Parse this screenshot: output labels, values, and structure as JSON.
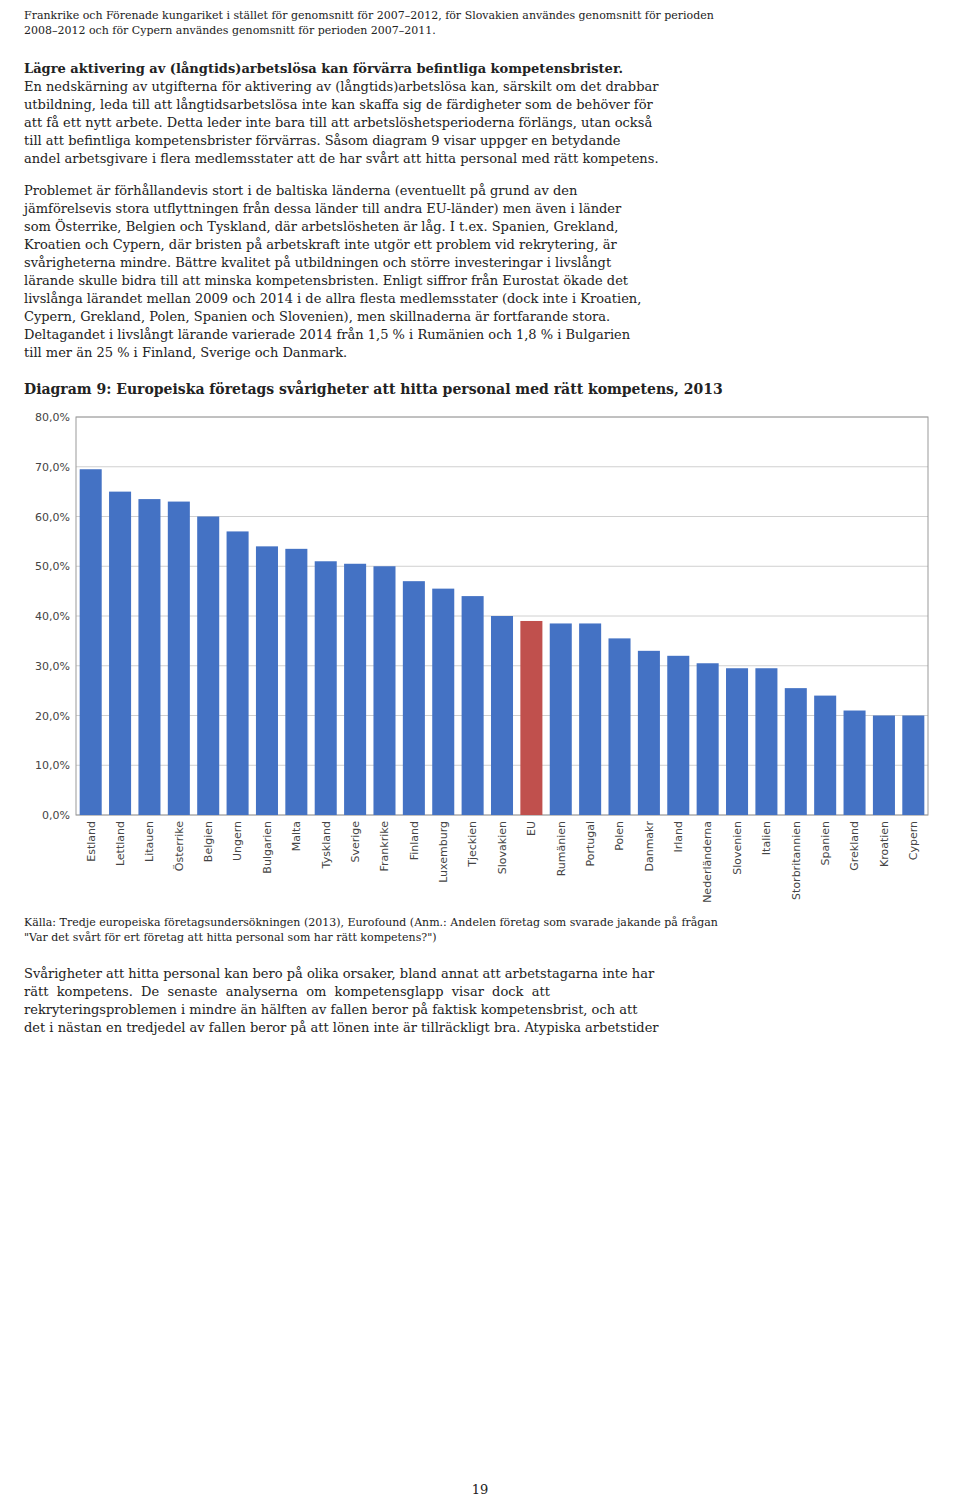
{
  "page": {
    "intro": "Frankrike och Förenade kungariket i stället för genomsnitt för 2007–2012, för Slovakien användes genomsnitt för perioden\n2008–2012 och för Cypern användes genomsnitt för perioden 2007–2011.",
    "heading": "Lägre aktivering av (långtids)arbetslösa kan förvärra befintliga kompetensbrister.",
    "body": "En nedskärning av utgifterna för aktivering av (långtids)arbetslösa kan, särskilt om det drabbar\nutbildning, leda till att långtidsarbetslösa inte kan skaffa sig de färdigheter som de behöver för\natt få ett nytt arbete. Detta leder inte bara till att arbetslöshetsperioderna förlängs, utan också\ntill att befintliga kompetensbrister förvärras. Såsom diagram 9 visar uppger en betydande\nandel arbetsgivare i flera medlemsstater att de har svårt att hitta personal med rätt kompetens.",
    "paragraph": "Problemet är förhållandevis stort i de baltiska länderna (eventuellt på grund av den\njämförelsevis stora utflyttningen från dessa länder till andra EU-länder) men även i länder\nsom Österrike, Belgien och Tyskland, där arbetslösheten är låg. I t.ex. Spanien, Grekland,\nKroatien och Cypern, där bristen på arbetskraft inte utgör ett problem vid rekrytering, är\nsvårigheterna mindre. Bättre kvalitet på utbildningen och större investeringar i livslångt\nlärande skulle bidra till att minska kompetensbristen. Enligt siffror från Eurostat ökade det\nlivslånga lärandet mellan 2009 och 2014 i de allra flesta medlemsstater (dock inte i Kroatien,\nCypern, Grekland, Polen, Spanien och Slovenien), men skillnaderna är fortfarande stora.\nDeltagandet i livslångt lärande varierade 2014 från 1,5 % i Rumänien och 1,8 % i Bulgarien\ntill mer än 25 % i Finland, Sverige och Danmark.",
    "bottom": "Svårigheter att hitta personal kan bero på olika orsaker, bland annat att arbetstagarna inte har\nrätt  kompetens.  De  senaste  analyserna  om  kompetensglapp  visar  dock  att\nrekryteringsproblemen i mindre än hälften av fallen beror på faktisk kompetensbrist, och att\ndet i nästan en tredjedel av fallen beror på att lönen inte är tillräckligt bra. Atypiska arbetstider",
    "page_number": "19"
  },
  "chart_data": {
    "type": "bar",
    "title": "Diagram 9: Europeiska företags svårigheter att hitta personal med rätt kompetens, 2013",
    "categories": [
      "Estland",
      "Lettland",
      "Litauen",
      "Österrike",
      "Belgien",
      "Ungern",
      "Bulgarien",
      "Malta",
      "Tyskland",
      "Sverige",
      "Frankrike",
      "Finland",
      "Luxemburg",
      "Tjeckien",
      "Slovakien",
      "EU",
      "Rumänien",
      "Portugal",
      "Polen",
      "Danmakr",
      "Irland",
      "Nederländerna",
      "Slovenien",
      "Italien",
      "Storbritannien",
      "Spanien",
      "Grekland",
      "Kroatien",
      "Cypern"
    ],
    "values": [
      69.5,
      65.0,
      63.5,
      63.0,
      60.0,
      57.0,
      54.0,
      53.5,
      51.0,
      50.5,
      50.0,
      47.0,
      45.5,
      44.0,
      40.0,
      39.0,
      38.5,
      38.5,
      35.5,
      33.0,
      32.0,
      30.5,
      29.5,
      29.5,
      25.5,
      24.0,
      21.0,
      20.0,
      20.0
    ],
    "colors": [
      "#4472C4",
      "#4472C4",
      "#4472C4",
      "#4472C4",
      "#4472C4",
      "#4472C4",
      "#4472C4",
      "#4472C4",
      "#4472C4",
      "#4472C4",
      "#4472C4",
      "#4472C4",
      "#4472C4",
      "#4472C4",
      "#4472C4",
      "#C0504D",
      "#4472C4",
      "#4472C4",
      "#4472C4",
      "#4472C4",
      "#4472C4",
      "#4472C4",
      "#4472C4",
      "#4472C4",
      "#4472C4",
      "#4472C4",
      "#4472C4",
      "#4472C4",
      "#4472C4"
    ],
    "ylim": [
      0,
      80
    ],
    "yticks": [
      {
        "value": 0,
        "label": "0,0%"
      },
      {
        "value": 10,
        "label": "10,0%"
      },
      {
        "value": 20,
        "label": "20,0%"
      },
      {
        "value": 30,
        "label": "30,0%"
      },
      {
        "value": 40,
        "label": "40,0%"
      },
      {
        "value": 50,
        "label": "50,0%"
      },
      {
        "value": 60,
        "label": "60,0%"
      },
      {
        "value": 70,
        "label": "70,0%"
      },
      {
        "value": 80,
        "label": "80,0%"
      }
    ],
    "grid": true,
    "caption": "Källa: Tredje europeiska företagsundersökningen (2013), Eurofound (Anm.: Andelen företag som svarade jakande på frågan\n\"Var det svårt för ert företag att hitta personal som har rätt kompetens?\")"
  }
}
